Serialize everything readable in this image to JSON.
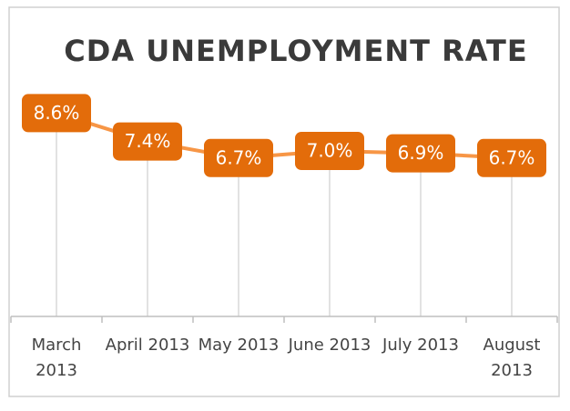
{
  "chart_data": {
    "type": "line",
    "title": "CDA UNEMPLOYMENT RATE",
    "categories": [
      "March 2013",
      "April 2013",
      "May 2013",
      "June 2013",
      "July 2013",
      "August 2013"
    ],
    "values": [
      8.6,
      7.4,
      6.7,
      7.0,
      6.9,
      6.7
    ],
    "value_labels": [
      "8.6%",
      "7.4%",
      "6.7%",
      "7.0%",
      "6.9%",
      "6.7%"
    ],
    "color": "#f79646",
    "label_color": "#e36c0a",
    "ylim": [
      0,
      10
    ]
  }
}
